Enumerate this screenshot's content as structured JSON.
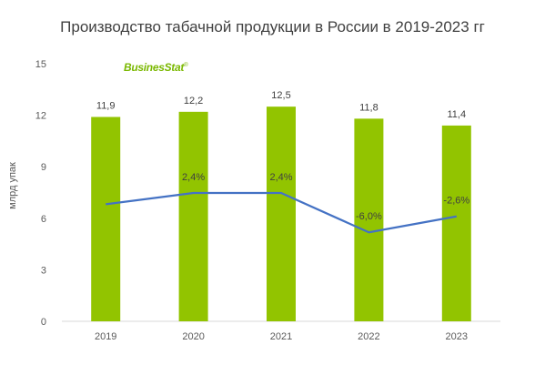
{
  "chart_data": {
    "type": "bar",
    "title": "Производство табачной продукции в России в 2019-2023 гг",
    "ylabel": "млрд упак",
    "xlabel": "",
    "categories": [
      "2019",
      "2020",
      "2021",
      "2022",
      "2023"
    ],
    "ylim": [
      0,
      15
    ],
    "yticks": [
      0,
      3,
      6,
      9,
      12,
      15
    ],
    "series": [
      {
        "type": "bar",
        "values": [
          11.9,
          12.2,
          12.5,
          11.8,
          11.4
        ],
        "value_labels": [
          "11,9",
          "12,2",
          "12,5",
          "11,8",
          "11,4"
        ]
      },
      {
        "type": "line",
        "values": [
          null,
          2.4,
          2.4,
          -6.0,
          -2.6
        ],
        "value_labels": [
          "",
          "2,4%",
          "2,4%",
          "-6,0%",
          "-2,6%"
        ]
      }
    ],
    "legend": "none",
    "grid": false,
    "colors": {
      "bar": "#92c400",
      "line": "#4472c4",
      "text": "#404040"
    }
  },
  "logo": {
    "text": "BusinesStat",
    "mark": "®"
  }
}
